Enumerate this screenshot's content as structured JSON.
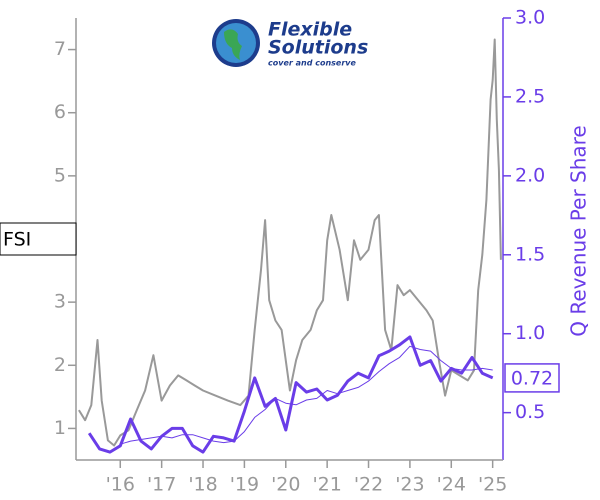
{
  "logo": {
    "line1": "Flexible",
    "line2": "Solutions",
    "tagline": "cover and conserve"
  },
  "chart_data": {
    "type": "line",
    "ticker_label": "FSI",
    "y2_label": "Q Revenue Per Share",
    "xlim": [
      2014.93,
      2025.25
    ],
    "xticks": [
      {
        "value": 2016,
        "label": "'16"
      },
      {
        "value": 2017,
        "label": "'17"
      },
      {
        "value": 2018,
        "label": "'18"
      },
      {
        "value": 2019,
        "label": "'19"
      },
      {
        "value": 2020,
        "label": "'20"
      },
      {
        "value": 2021,
        "label": "'21"
      },
      {
        "value": 2022,
        "label": "'22"
      },
      {
        "value": 2023,
        "label": "'23"
      },
      {
        "value": 2024,
        "label": "'24"
      },
      {
        "value": 2025,
        "label": "'25"
      }
    ],
    "ylim": [
      0.5,
      7.5
    ],
    "yticks": [
      1,
      2,
      3,
      4,
      5,
      6,
      7
    ],
    "y2lim": [
      0.2,
      3.0
    ],
    "y2ticks": [
      0.5,
      {
        "value": 1.0,
        "label": "1.0"
      },
      1.5,
      {
        "value": 2.0,
        "label": "2.0"
      },
      2.5,
      {
        "value": 3.0,
        "label": "3.0"
      }
    ],
    "series": [
      {
        "color": "#999999",
        "axis": "y",
        "width": 2,
        "x": [
          2015.0,
          2015.15,
          2015.3,
          2015.45,
          2015.55,
          2015.7,
          2015.85,
          2016.0,
          2016.2,
          2016.4,
          2016.6,
          2016.8,
          2017.0,
          2017.2,
          2017.4,
          2017.6,
          2017.8,
          2018.0,
          2018.3,
          2018.6,
          2018.9,
          2019.1,
          2019.25,
          2019.4,
          2019.5,
          2019.6,
          2019.75,
          2019.9,
          2020.1,
          2020.25,
          2020.4,
          2020.6,
          2020.75,
          2020.9,
          2021.0,
          2021.1,
          2021.3,
          2021.5,
          2021.65,
          2021.8,
          2022.0,
          2022.15,
          2022.25,
          2022.4,
          2022.55,
          2022.7,
          2022.85,
          2023.0,
          2023.2,
          2023.4,
          2023.55,
          2023.7,
          2023.85,
          2024.0,
          2024.2,
          2024.4,
          2024.55,
          2024.65,
          2024.75,
          2024.85,
          2024.95,
          2025.0,
          2025.05,
          2025.1,
          2025.15,
          2025.2
        ],
        "values": [
          1.29,
          1.13,
          1.37,
          2.4,
          1.44,
          0.81,
          0.73,
          0.89,
          0.97,
          1.29,
          1.6,
          2.16,
          1.44,
          1.68,
          1.84,
          1.76,
          1.68,
          1.6,
          1.52,
          1.44,
          1.37,
          1.52,
          2.56,
          3.51,
          4.3,
          3.03,
          2.71,
          2.56,
          1.6,
          2.08,
          2.4,
          2.56,
          2.87,
          3.03,
          3.98,
          4.38,
          3.83,
          3.03,
          3.98,
          3.67,
          3.83,
          4.3,
          4.38,
          2.56,
          2.24,
          3.27,
          3.11,
          3.19,
          3.03,
          2.87,
          2.71,
          2.08,
          1.52,
          1.92,
          1.84,
          1.76,
          1.92,
          3.19,
          3.75,
          4.62,
          6.21,
          6.52,
          7.16,
          5.89,
          5.1,
          3.67
        ]
      },
      {
        "color": "#6a3de8",
        "axis": "y2",
        "width": 3,
        "x": [
          2015.25,
          2015.5,
          2015.75,
          2016.0,
          2016.25,
          2016.5,
          2016.75,
          2017.0,
          2017.25,
          2017.5,
          2017.75,
          2018.0,
          2018.25,
          2018.5,
          2018.75,
          2019.0,
          2019.25,
          2019.5,
          2019.75,
          2020.0,
          2020.25,
          2020.5,
          2020.75,
          2021.0,
          2021.25,
          2021.5,
          2021.75,
          2022.0,
          2022.25,
          2022.5,
          2022.75,
          2023.0,
          2023.25,
          2023.5,
          2023.75,
          2024.0,
          2024.25,
          2024.5,
          2024.75,
          2025.0
        ],
        "values": [
          0.37,
          0.27,
          0.25,
          0.29,
          0.46,
          0.32,
          0.27,
          0.35,
          0.4,
          0.4,
          0.29,
          0.25,
          0.35,
          0.34,
          0.32,
          0.51,
          0.72,
          0.54,
          0.59,
          0.39,
          0.69,
          0.63,
          0.65,
          0.58,
          0.61,
          0.7,
          0.75,
          0.72,
          0.86,
          0.89,
          0.93,
          0.98,
          0.8,
          0.83,
          0.7,
          0.78,
          0.75,
          0.85,
          0.75,
          0.72
        ],
        "value_labels": [
          null,
          null,
          null,
          null,
          null,
          null,
          null,
          null,
          null,
          null,
          null,
          null,
          null,
          null,
          null,
          null,
          null,
          null,
          null,
          null,
          null,
          null,
          null,
          null,
          null,
          null,
          null,
          null,
          null,
          null,
          null,
          null,
          null,
          null,
          null,
          null,
          null,
          null,
          null,
          "0.72"
        ]
      },
      {
        "color": "#6a3de8",
        "axis": "y2",
        "width": 1,
        "x": [
          2015.25,
          2015.5,
          2015.75,
          2016.0,
          2016.25,
          2016.5,
          2016.75,
          2017.0,
          2017.25,
          2017.5,
          2017.75,
          2018.0,
          2018.25,
          2018.5,
          2018.75,
          2019.0,
          2019.25,
          2019.5,
          2019.75,
          2020.0,
          2020.25,
          2020.5,
          2020.75,
          2021.0,
          2021.25,
          2021.5,
          2021.75,
          2022.0,
          2022.25,
          2022.5,
          2022.75,
          2023.0,
          2023.25,
          2023.5,
          2023.75,
          2024.0,
          2024.25,
          2024.5,
          2024.75,
          2025.0
        ],
        "values": [
          null,
          null,
          null,
          0.3,
          0.32,
          0.33,
          0.34,
          0.35,
          0.34,
          0.36,
          0.36,
          0.34,
          0.32,
          0.31,
          0.32,
          0.38,
          0.47,
          0.52,
          0.59,
          0.56,
          0.55,
          0.58,
          0.59,
          0.64,
          0.62,
          0.64,
          0.66,
          0.7,
          0.76,
          0.81,
          0.85,
          0.92,
          0.9,
          0.89,
          0.83,
          0.78,
          0.77,
          0.77,
          0.78,
          0.77
        ]
      }
    ]
  }
}
